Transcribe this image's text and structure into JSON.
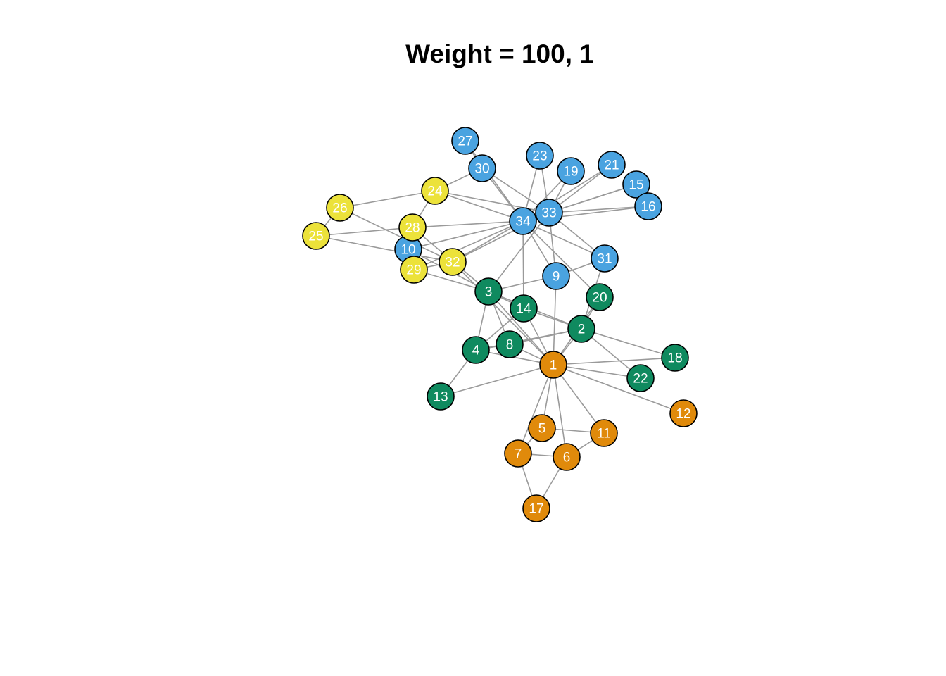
{
  "title": "Weight = 100, 1",
  "groups": {
    "orange": "#e08a0b",
    "green": "#0f8a5f",
    "blue": "#4aa3e0",
    "yellow": "#ece23a"
  },
  "nodes": [
    {
      "id": "1",
      "group": "orange"
    },
    {
      "id": "2",
      "group": "green"
    },
    {
      "id": "3",
      "group": "green"
    },
    {
      "id": "4",
      "group": "green"
    },
    {
      "id": "5",
      "group": "orange"
    },
    {
      "id": "6",
      "group": "orange"
    },
    {
      "id": "7",
      "group": "orange"
    },
    {
      "id": "8",
      "group": "green"
    },
    {
      "id": "9",
      "group": "blue"
    },
    {
      "id": "10",
      "group": "blue"
    },
    {
      "id": "11",
      "group": "orange"
    },
    {
      "id": "12",
      "group": "orange"
    },
    {
      "id": "13",
      "group": "green"
    },
    {
      "id": "14",
      "group": "green"
    },
    {
      "id": "15",
      "group": "blue"
    },
    {
      "id": "16",
      "group": "blue"
    },
    {
      "id": "17",
      "group": "orange"
    },
    {
      "id": "18",
      "group": "green"
    },
    {
      "id": "19",
      "group": "blue"
    },
    {
      "id": "20",
      "group": "green"
    },
    {
      "id": "21",
      "group": "blue"
    },
    {
      "id": "22",
      "group": "green"
    },
    {
      "id": "23",
      "group": "blue"
    },
    {
      "id": "24",
      "group": "yellow"
    },
    {
      "id": "25",
      "group": "yellow"
    },
    {
      "id": "26",
      "group": "yellow"
    },
    {
      "id": "27",
      "group": "blue"
    },
    {
      "id": "28",
      "group": "yellow"
    },
    {
      "id": "29",
      "group": "yellow"
    },
    {
      "id": "30",
      "group": "blue"
    },
    {
      "id": "31",
      "group": "blue"
    },
    {
      "id": "32",
      "group": "yellow"
    },
    {
      "id": "33",
      "group": "blue"
    },
    {
      "id": "34",
      "group": "blue"
    }
  ],
  "edges": [
    [
      "1",
      "2"
    ],
    [
      "1",
      "3"
    ],
    [
      "1",
      "4"
    ],
    [
      "1",
      "5"
    ],
    [
      "1",
      "6"
    ],
    [
      "1",
      "7"
    ],
    [
      "1",
      "8"
    ],
    [
      "1",
      "9"
    ],
    [
      "1",
      "11"
    ],
    [
      "1",
      "12"
    ],
    [
      "1",
      "13"
    ],
    [
      "1",
      "14"
    ],
    [
      "1",
      "18"
    ],
    [
      "1",
      "20"
    ],
    [
      "1",
      "22"
    ],
    [
      "1",
      "32"
    ],
    [
      "2",
      "3"
    ],
    [
      "2",
      "4"
    ],
    [
      "2",
      "8"
    ],
    [
      "2",
      "14"
    ],
    [
      "2",
      "18"
    ],
    [
      "2",
      "20"
    ],
    [
      "2",
      "22"
    ],
    [
      "2",
      "31"
    ],
    [
      "3",
      "4"
    ],
    [
      "3",
      "8"
    ],
    [
      "3",
      "9"
    ],
    [
      "3",
      "10"
    ],
    [
      "3",
      "14"
    ],
    [
      "3",
      "28"
    ],
    [
      "3",
      "29"
    ],
    [
      "3",
      "33"
    ],
    [
      "4",
      "8"
    ],
    [
      "4",
      "13"
    ],
    [
      "4",
      "14"
    ],
    [
      "5",
      "7"
    ],
    [
      "5",
      "11"
    ],
    [
      "6",
      "7"
    ],
    [
      "6",
      "11"
    ],
    [
      "6",
      "17"
    ],
    [
      "7",
      "17"
    ],
    [
      "9",
      "31"
    ],
    [
      "9",
      "33"
    ],
    [
      "9",
      "34"
    ],
    [
      "10",
      "34"
    ],
    [
      "14",
      "34"
    ],
    [
      "15",
      "33"
    ],
    [
      "15",
      "34"
    ],
    [
      "16",
      "33"
    ],
    [
      "16",
      "34"
    ],
    [
      "19",
      "33"
    ],
    [
      "19",
      "34"
    ],
    [
      "20",
      "34"
    ],
    [
      "21",
      "33"
    ],
    [
      "21",
      "34"
    ],
    [
      "23",
      "33"
    ],
    [
      "23",
      "34"
    ],
    [
      "24",
      "26"
    ],
    [
      "24",
      "28"
    ],
    [
      "24",
      "30"
    ],
    [
      "24",
      "33"
    ],
    [
      "24",
      "34"
    ],
    [
      "25",
      "26"
    ],
    [
      "25",
      "28"
    ],
    [
      "25",
      "32"
    ],
    [
      "26",
      "32"
    ],
    [
      "27",
      "30"
    ],
    [
      "27",
      "34"
    ],
    [
      "28",
      "34"
    ],
    [
      "29",
      "32"
    ],
    [
      "29",
      "34"
    ],
    [
      "30",
      "33"
    ],
    [
      "30",
      "34"
    ],
    [
      "31",
      "33"
    ],
    [
      "31",
      "34"
    ],
    [
      "32",
      "33"
    ],
    [
      "32",
      "34"
    ],
    [
      "33",
      "34"
    ]
  ]
}
